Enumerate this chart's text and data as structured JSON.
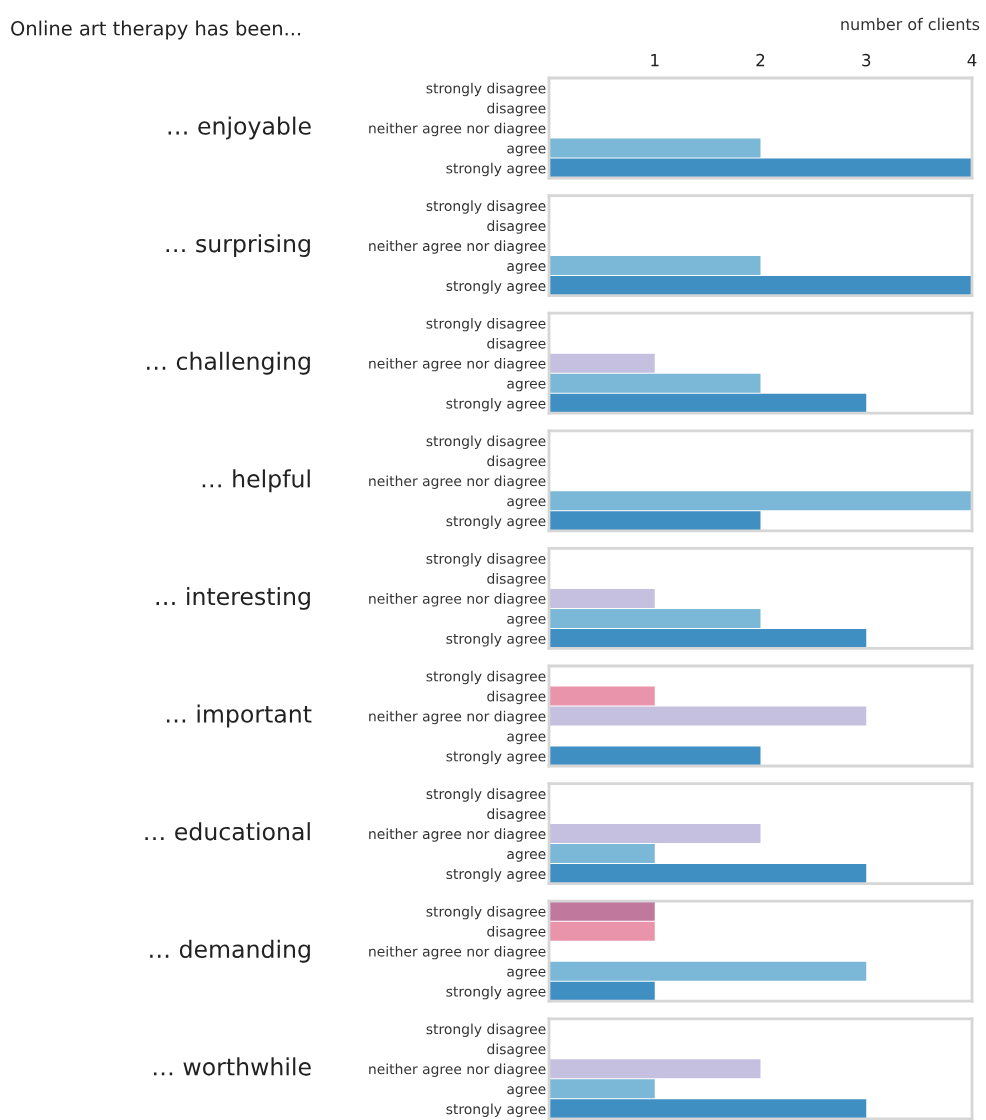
{
  "chart_data": [
    {
      "type": "bar",
      "orientation": "horizontal",
      "title": "Online art therapy has been...",
      "xlabel": "number of clients",
      "ylabel": "… enjoyable",
      "categories": [
        "strongly disagree",
        "disagree",
        "neither agree nor diagree",
        "agree",
        "strongly agree"
      ],
      "values": [
        0,
        0,
        0,
        2,
        4
      ],
      "colors": [
        "#c0789c",
        "#e994ab",
        "#c5c0e0",
        "#7bb7d6",
        "#3f8fc3"
      ],
      "xlim": [
        0,
        4
      ],
      "xticks": [
        1,
        2,
        3,
        4
      ]
    },
    {
      "type": "bar",
      "orientation": "horizontal",
      "ylabel": "… surprising",
      "categories": [
        "strongly disagree",
        "disagree",
        "neither agree nor diagree",
        "agree",
        "strongly agree"
      ],
      "values": [
        0,
        0,
        0,
        2,
        4
      ],
      "colors": [
        "#c0789c",
        "#e994ab",
        "#c5c0e0",
        "#7bb7d6",
        "#3f8fc3"
      ],
      "xlim": [
        0,
        4
      ],
      "tick_labels": "y"
    },
    {
      "type": "bar",
      "orientation": "horizontal",
      "ylabel": "… challenging",
      "categories": [
        "strongly disagree",
        "disagree",
        "neither agree nor diagree",
        "agree",
        "strongly agree"
      ],
      "values": [
        0,
        0,
        1,
        2,
        3
      ],
      "colors": [
        "#c0789c",
        "#e994ab",
        "#c5c0e0",
        "#7bb7d6",
        "#3f8fc3"
      ],
      "xlim": [
        0,
        4
      ],
      "tick_labels": "y"
    },
    {
      "type": "bar",
      "orientation": "horizontal",
      "ylabel": "… helpful",
      "categories": [
        "strongly disagree",
        "disagree",
        "neither agree nor diagree",
        "agree",
        "strongly agree"
      ],
      "values": [
        0,
        0,
        0,
        4,
        2
      ],
      "colors": [
        "#c0789c",
        "#e994ab",
        "#c5c0e0",
        "#7bb7d6",
        "#3f8fc3"
      ],
      "xlim": [
        0,
        4
      ],
      "tick_labels": "y"
    },
    {
      "type": "bar",
      "orientation": "horizontal",
      "ylabel": "… interesting",
      "categories": [
        "strongly disagree",
        "disagree",
        "neither agree nor diagree",
        "agree",
        "strongly agree"
      ],
      "values": [
        0,
        0,
        1,
        2,
        3
      ],
      "colors": [
        "#c0789c",
        "#e994ab",
        "#c5c0e0",
        "#7bb7d6",
        "#3f8fc3"
      ],
      "xlim": [
        0,
        4
      ],
      "tick_labels": "y"
    },
    {
      "type": "bar",
      "orientation": "horizontal",
      "ylabel": "… important",
      "categories": [
        "strongly disagree",
        "disagree",
        "neither agree nor diagree",
        "agree",
        "strongly agree"
      ],
      "values": [
        0,
        1,
        3,
        0,
        2
      ],
      "colors": [
        "#c0789c",
        "#e994ab",
        "#c5c0e0",
        "#7bb7d6",
        "#3f8fc3"
      ],
      "xlim": [
        0,
        4
      ],
      "tick_labels": "y"
    },
    {
      "type": "bar",
      "orientation": "horizontal",
      "ylabel": "… educational",
      "categories": [
        "strongly disagree",
        "disagree",
        "neither agree nor diagree",
        "agree",
        "strongly agree"
      ],
      "values": [
        0,
        0,
        2,
        1,
        3
      ],
      "colors": [
        "#c0789c",
        "#e994ab",
        "#c5c0e0",
        "#7bb7d6",
        "#3f8fc3"
      ],
      "xlim": [
        0,
        4
      ],
      "tick_labels": "y"
    },
    {
      "type": "bar",
      "orientation": "horizontal",
      "ylabel": "… demanding",
      "categories": [
        "strongly disagree",
        "disagree",
        "neither agree nor diagree",
        "agree",
        "strongly agree"
      ],
      "values": [
        1,
        1,
        0,
        3,
        1
      ],
      "colors": [
        "#c0789c",
        "#e994ab",
        "#c5c0e0",
        "#7bb7d6",
        "#3f8fc3"
      ],
      "xlim": [
        0,
        4
      ],
      "tick_labels": "y"
    },
    {
      "type": "bar",
      "orientation": "horizontal",
      "ylabel": "… worthwhile",
      "categories": [
        "strongly disagree",
        "disagree",
        "neither agree nor diagree",
        "agree",
        "strongly agree"
      ],
      "values": [
        0,
        0,
        2,
        1,
        3
      ],
      "colors": [
        "#c0789c",
        "#e994ab",
        "#c5c0e0",
        "#7bb7d6",
        "#3f8fc3"
      ],
      "xlim": [
        0,
        4
      ],
      "tick_labels": "y"
    }
  ]
}
